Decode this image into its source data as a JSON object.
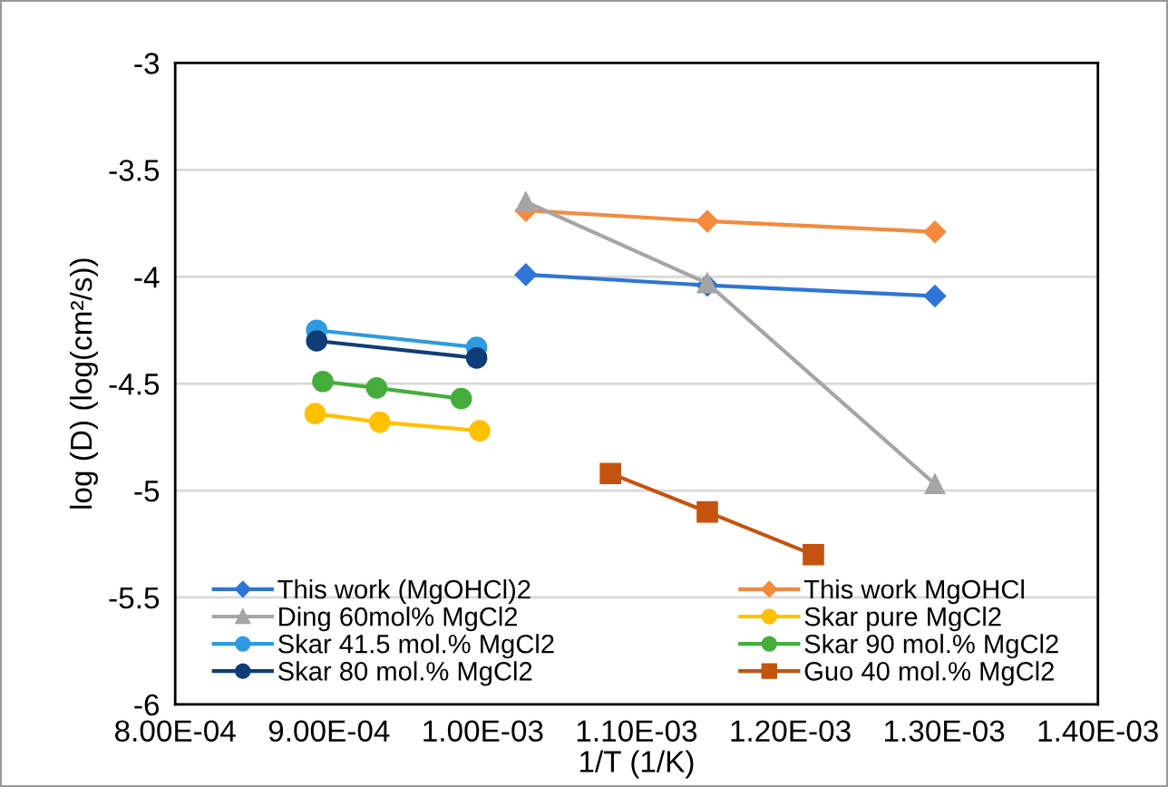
{
  "chart_data": {
    "type": "line",
    "xlabel": "1/T (1/K)",
    "ylabel": "log (D) (log(cm²/s))",
    "xlim": [
      0.0008,
      0.0014
    ],
    "xticks": [
      {
        "value": 0.0008,
        "label": "8.00E-04"
      },
      {
        "value": 0.0009,
        "label": "9.00E-04"
      },
      {
        "value": 0.001,
        "label": "1.00E-03"
      },
      {
        "value": 0.0011,
        "label": "1.10E-03"
      },
      {
        "value": 0.0012,
        "label": "1.20E-03"
      },
      {
        "value": 0.0013,
        "label": "1.30E-03"
      },
      {
        "value": 0.0014,
        "label": "1.40E-03"
      }
    ],
    "ylim": [
      -6,
      -3
    ],
    "yticks": [
      -6,
      -5.5,
      -5,
      -4.5,
      -4,
      -3.5,
      -3
    ],
    "grid": "y",
    "legend": "bottom",
    "series": [
      {
        "name": "This work (MgOHCl)2",
        "color": "#2e75d6",
        "marker": "diamond",
        "x": [
          0.001028,
          0.001146,
          0.001294
        ],
        "values": [
          -3.99,
          -4.04,
          -4.09
        ]
      },
      {
        "name": "This work MgOHCl",
        "color": "#f58a3c",
        "marker": "diamond",
        "x": [
          0.001028,
          0.001146,
          0.001294
        ],
        "values": [
          -3.69,
          -3.74,
          -3.79
        ]
      },
      {
        "name": "Ding 60mol% MgCl2",
        "color": "#a5a5a5",
        "marker": "triangle",
        "x": [
          0.001028,
          0.001146,
          0.001294
        ],
        "values": [
          -3.65,
          -4.03,
          -4.97
        ]
      },
      {
        "name": "Skar pure MgCl2",
        "color": "#ffc000",
        "marker": "circle",
        "x": [
          0.000891,
          0.000933,
          0.000998
        ],
        "values": [
          -4.64,
          -4.68,
          -4.72
        ]
      },
      {
        "name": "Skar 41.5 mol.% MgCl2",
        "color": "#2e9be0",
        "marker": "circle",
        "x": [
          0.000892,
          0.000996
        ],
        "values": [
          -4.25,
          -4.33
        ]
      },
      {
        "name": "Skar 90 mol.% MgCl2",
        "color": "#44ad3c",
        "marker": "circle",
        "x": [
          0.000896,
          0.000931,
          0.000986
        ],
        "values": [
          -4.49,
          -4.52,
          -4.57
        ]
      },
      {
        "name": "Skar 80 mol.% MgCl2",
        "color": "#0f3d78",
        "marker": "circle",
        "x": [
          0.000892,
          0.000996
        ],
        "values": [
          -4.3,
          -4.38
        ]
      },
      {
        "name": "Guo 40 mol.% MgCl2",
        "color": "#c4530f",
        "marker": "square",
        "x": [
          0.001083,
          0.001146,
          0.001215
        ],
        "values": [
          -4.92,
          -5.1,
          -5.3
        ]
      }
    ]
  }
}
